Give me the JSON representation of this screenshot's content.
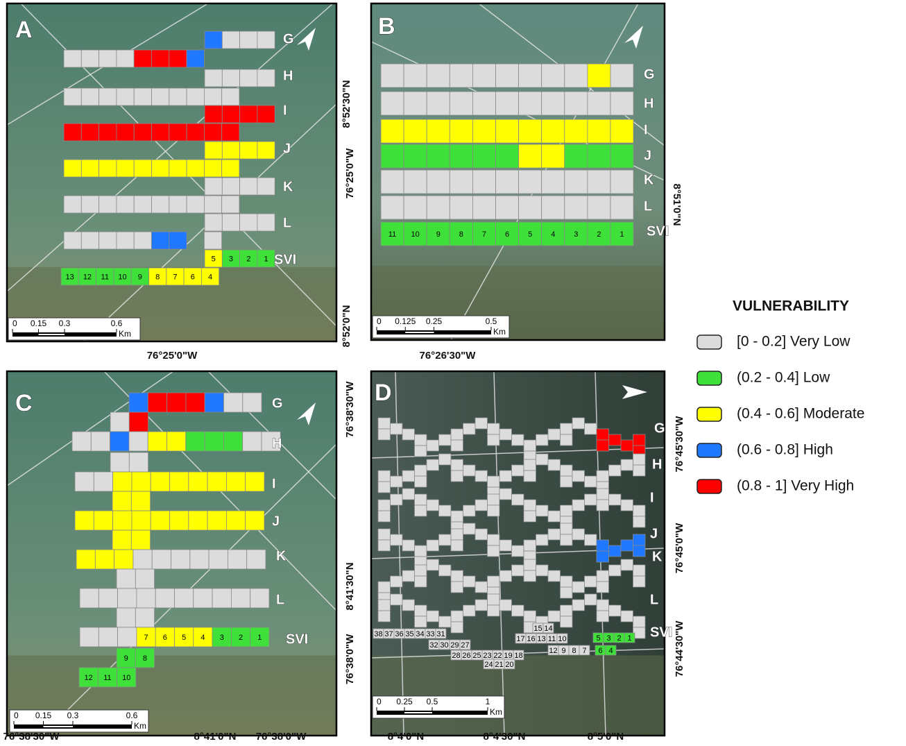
{
  "panels": [
    {
      "label": "A",
      "rows": [
        "G",
        "H",
        "I",
        "J",
        "K",
        "L",
        "SVI"
      ],
      "svi": [
        5,
        3,
        2,
        1,
        13,
        12,
        11,
        10,
        9,
        8,
        7,
        6,
        4
      ],
      "coords": [
        "8°52'30\"N",
        "76°25'0\"W",
        "8°52'0\"N",
        "76°25'0\"W"
      ],
      "scale_ticks": [
        0,
        0.15,
        0.3,
        0.6
      ],
      "scale_unit": "Km"
    },
    {
      "label": "B",
      "rows": [
        "G",
        "H",
        "I",
        "J",
        "K",
        "L",
        "SVI"
      ],
      "svi": [
        11,
        10,
        9,
        8,
        7,
        6,
        5,
        4,
        3,
        2,
        1
      ],
      "coords": [
        "8°51'0\"N",
        "76°26'30\"W"
      ],
      "scale_ticks": [
        0,
        0.125,
        0.25,
        0.5
      ],
      "scale_unit": "Km"
    },
    {
      "label": "C",
      "rows": [
        "G",
        "H",
        "I",
        "J",
        "K",
        "L",
        "SVI"
      ],
      "svi": [
        7,
        6,
        5,
        4,
        3,
        2,
        1,
        9,
        8,
        12,
        11,
        10
      ],
      "coords": [
        "76°38'30\"W",
        "8°41'30\"N",
        "76°38'0\"W",
        "76°38'30\"W",
        "8°41'0\"N",
        "76°38'0\"W"
      ],
      "scale_ticks": [
        0,
        0.15,
        0.3,
        0.6
      ],
      "scale_unit": "Km"
    },
    {
      "label": "D",
      "rows": [
        "G",
        "H",
        "I",
        "J",
        "K",
        "L",
        "SVI"
      ],
      "svi": [
        15,
        14,
        38,
        37,
        36,
        35,
        34,
        33,
        31,
        17,
        16,
        13,
        11,
        10,
        5,
        3,
        2,
        1,
        32,
        30,
        29,
        27,
        12,
        9,
        8,
        7,
        6,
        4,
        28,
        26,
        25,
        23,
        22,
        19,
        18,
        24,
        21,
        20
      ],
      "coords": [
        "76°45'30\"W",
        "76°45'0\"W",
        "76°44'30\"W",
        "8°4'0\"N",
        "8°4'30\"N",
        "8°5'0\"N"
      ],
      "scale_ticks": [
        0,
        0.25,
        0.5,
        1
      ],
      "scale_unit": "Km"
    }
  ],
  "legend": {
    "title": "VULNERABILITY",
    "classes": [
      {
        "label": "[0 - 0.2] Very Low",
        "color": "#dcdcdc"
      },
      {
        "label": "(0.2 - 0.4] Low",
        "color": "#3fe03a"
      },
      {
        "label": "(0.4 - 0.6] Moderate",
        "color": "#ffff00"
      },
      {
        "label": "(0.6 - 0.8] High",
        "color": "#1f78ff"
      },
      {
        "label": "(0.8 - 1] Very High",
        "color": "#ff0000"
      }
    ]
  }
}
